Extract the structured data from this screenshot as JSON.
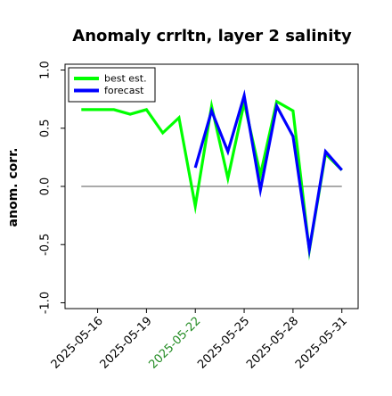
{
  "chart_data": {
    "type": "line",
    "title": "Anomaly crrltn, layer 2 salinity",
    "xlabel": "",
    "ylabel": "anom. corr.",
    "ylim": [
      -1.05,
      1.05
    ],
    "yticks": [
      -1.0,
      -0.5,
      0.0,
      0.5,
      1.0
    ],
    "yticklabels": [
      "-1.0",
      "-0.5",
      "0.0",
      "0.5",
      "1.0"
    ],
    "xlim": [
      "2025-05-14",
      "2025-06-01"
    ],
    "xticks": [
      "2025-05-16",
      "2025-05-19",
      "2025-05-22",
      "2025-05-25",
      "2025-05-28",
      "2025-05-31"
    ],
    "xticklabels": [
      "2025-05-16",
      "2025-05-19",
      "2025-05-22",
      "2025-05-25",
      "2025-05-28",
      "2025-05-31"
    ],
    "highlighted_xtick": "2025-05-22",
    "highlight_color": "#228b22",
    "reference_line": 0.0,
    "legend_position": "top-left",
    "grid": false,
    "series": [
      {
        "name": "best est.",
        "color": "#00ff00",
        "points": [
          [
            "2025-05-15",
            0.66
          ],
          [
            "2025-05-16",
            0.66
          ],
          [
            "2025-05-17",
            0.66
          ],
          [
            "2025-05-18",
            0.62
          ],
          [
            "2025-05-19",
            0.66
          ],
          [
            "2025-05-20",
            0.46
          ],
          [
            "2025-05-21",
            0.59
          ],
          [
            "2025-05-22",
            -0.17
          ],
          [
            "2025-05-23",
            0.69
          ],
          [
            "2025-05-24",
            0.07
          ],
          [
            "2025-05-25",
            0.72
          ],
          [
            "2025-05-26",
            0.1
          ],
          [
            "2025-05-27",
            0.73
          ],
          [
            "2025-05-28",
            0.65
          ],
          [
            "2025-05-29",
            -0.55
          ],
          [
            "2025-05-30",
            0.28
          ],
          [
            "2025-05-31",
            0.14
          ]
        ]
      },
      {
        "name": "forecast",
        "color": "#0000ff",
        "points": [
          [
            "2025-05-22",
            0.16
          ],
          [
            "2025-05-23",
            0.65
          ],
          [
            "2025-05-24",
            0.3
          ],
          [
            "2025-05-25",
            0.78
          ],
          [
            "2025-05-26",
            -0.03
          ],
          [
            "2025-05-27",
            0.69
          ],
          [
            "2025-05-28",
            0.43
          ],
          [
            "2025-05-29",
            -0.54
          ],
          [
            "2025-05-30",
            0.3
          ],
          [
            "2025-05-31",
            0.14
          ]
        ]
      }
    ]
  }
}
